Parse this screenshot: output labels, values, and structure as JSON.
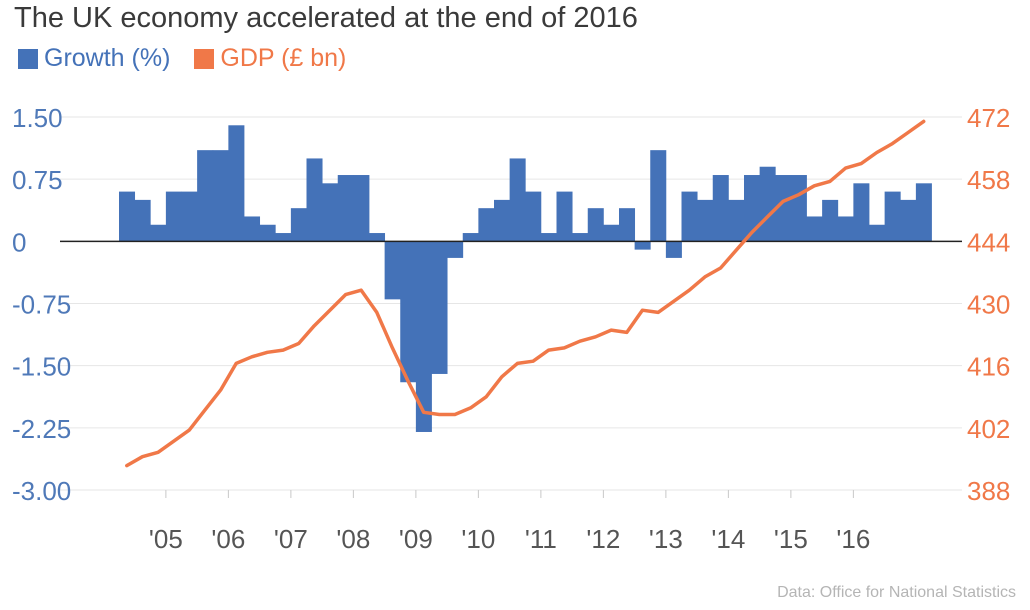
{
  "title": "The UK economy accelerated at the end of 2016",
  "source": "Data: Office for National Statistics",
  "colors": {
    "growth": "#4472b8",
    "gdp": "#f07848",
    "grid": "#e6e6e6",
    "axis_left": "#4f79b8",
    "axis_right": "#f07848",
    "x_tick": "#555555"
  },
  "chart_data": {
    "type": "bar+line",
    "title": "The UK economy accelerated at the end of 2016",
    "x_ticks": [
      "'05",
      "'06",
      "'07",
      "'08",
      "'09",
      "'10",
      "'11",
      "'12",
      "'13",
      "'14",
      "'15",
      "'16"
    ],
    "y_left": {
      "ticks": [
        "1.50",
        "0.75",
        "0",
        "-0.75",
        "-1.50",
        "-2.25",
        "-3.00"
      ],
      "ylim": [
        -3.0,
        1.5
      ]
    },
    "y_right": {
      "ticks": [
        "472",
        "458",
        "444",
        "430",
        "416",
        "402",
        "388"
      ],
      "ylim": [
        388,
        472
      ]
    },
    "grid": true,
    "legend_position": "top-left",
    "series": [
      {
        "name": "Growth (%)",
        "type": "bar",
        "axis": "left",
        "x_start": 2004.25,
        "step": 0.25,
        "values": [
          0.6,
          0.5,
          0.2,
          0.6,
          0.6,
          1.1,
          1.1,
          1.4,
          0.3,
          0.2,
          0.1,
          0.4,
          1.0,
          0.7,
          0.8,
          0.8,
          0.1,
          -0.7,
          -1.7,
          -2.3,
          -1.6,
          -0.2,
          0.1,
          0.4,
          0.5,
          1.0,
          0.6,
          0.1,
          0.6,
          0.1,
          0.4,
          0.2,
          0.4,
          -0.1,
          1.1,
          -0.2,
          0.6,
          0.5,
          0.8,
          0.5,
          0.8,
          0.9,
          0.8,
          0.8,
          0.3,
          0.5,
          0.3,
          0.7,
          0.2,
          0.6,
          0.5,
          0.7
        ]
      },
      {
        "name": "GDP (£ bn)",
        "type": "line",
        "axis": "right",
        "x_start": 2004.25,
        "step": 0.25,
        "values": [
          393.5,
          395.5,
          396.5,
          399,
          401.5,
          406,
          410.5,
          416.5,
          418,
          419,
          419.5,
          421,
          425,
          428.5,
          432,
          433,
          428,
          420,
          412.5,
          405.5,
          405,
          405,
          406.5,
          409,
          413.5,
          416.5,
          417,
          419.5,
          420,
          421.5,
          422.5,
          424,
          423.5,
          428.5,
          428,
          430.5,
          433,
          436,
          438,
          442,
          446,
          449.5,
          453,
          454.5,
          456.5,
          457.5,
          460.5,
          461.5,
          464,
          466,
          468.5,
          471
        ]
      }
    ]
  }
}
